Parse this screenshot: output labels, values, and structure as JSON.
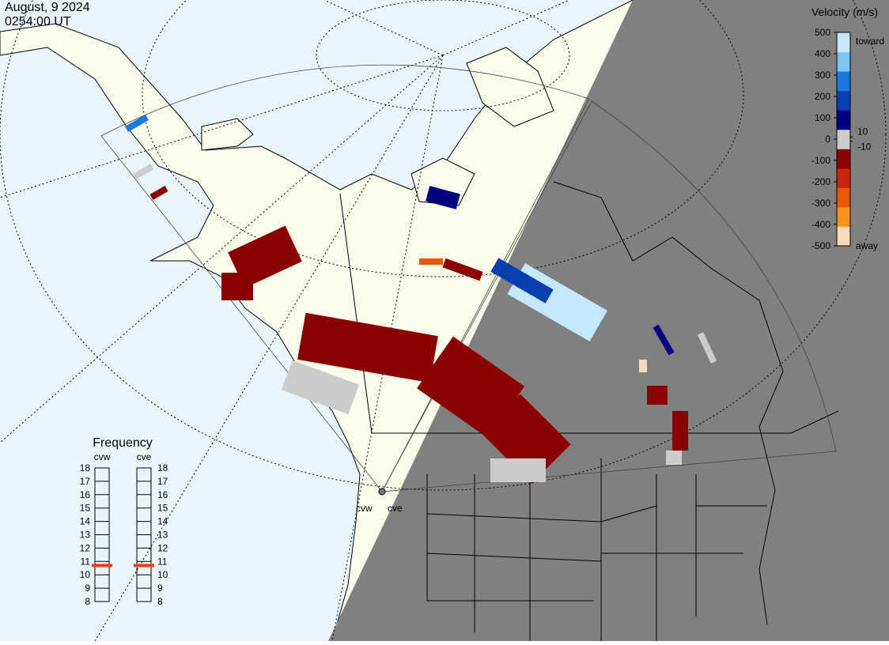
{
  "header": {
    "date": "August, 9 2024",
    "time": "0254:00 UT"
  },
  "colorbar": {
    "title": "Velocity (m/s)",
    "range": [
      -500,
      500
    ],
    "ticks": [
      500,
      400,
      300,
      200,
      100,
      0,
      -100,
      -200,
      -300,
      -400,
      -500
    ],
    "inner_ticks": [
      10,
      -10
    ],
    "top_label": "toward",
    "bottom_label": "away",
    "colors": [
      "#fcd9b8",
      "#f7941d",
      "#e8590c",
      "#c8260c",
      "#8b0000",
      "#cccccc",
      "#000080",
      "#0a3fb0",
      "#1a78e0",
      "#7cc4f4",
      "#c6e8fc"
    ]
  },
  "frequency": {
    "title": "Frequency",
    "range": [
      8,
      18
    ],
    "ticks": [
      8,
      9,
      10,
      11,
      12,
      13,
      14,
      15,
      16,
      17,
      18
    ],
    "radars": [
      {
        "name": "cvw",
        "value": 10.7
      },
      {
        "name": "cve",
        "value": 10.7
      }
    ]
  },
  "stations": [
    "cvw",
    "cve"
  ]
}
